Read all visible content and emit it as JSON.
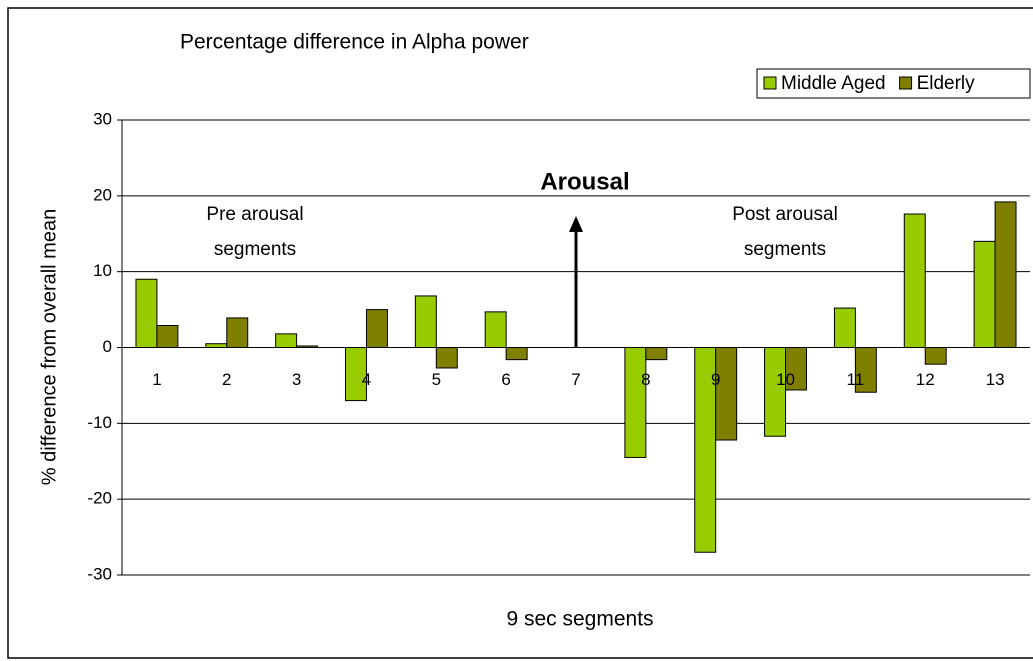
{
  "chart_data": {
    "type": "bar",
    "title": "Percentage difference in Alpha power",
    "x_label": "9 sec segments",
    "y_label": "% difference from overall mean",
    "categories": [
      "1",
      "2",
      "3",
      "4",
      "5",
      "6",
      "7",
      "8",
      "9",
      "10",
      "11",
      "12",
      "13"
    ],
    "series": [
      {
        "name": "Middle Aged",
        "color": "#99cc00",
        "values": [
          9,
          0.5,
          1.8,
          -7,
          6.8,
          4.7,
          0,
          -14.5,
          -27,
          -11.7,
          5.2,
          17.6,
          14
        ]
      },
      {
        "name": "Elderly",
        "color": "#808000",
        "values": [
          2.9,
          3.9,
          0.2,
          5,
          -2.7,
          -1.6,
          0,
          -1.6,
          -12.2,
          -5.6,
          -5.9,
          -2.2,
          19.2
        ]
      }
    ],
    "ylim": [
      -30,
      30
    ],
    "yticks": [
      -30,
      -20,
      -10,
      0,
      10,
      20,
      30
    ],
    "grid": true,
    "legend": "top-right",
    "annotations": {
      "arousal": "Arousal",
      "pre": [
        "Pre arousal",
        "segments"
      ],
      "post": [
        "Post arousal",
        "segments"
      ]
    }
  }
}
